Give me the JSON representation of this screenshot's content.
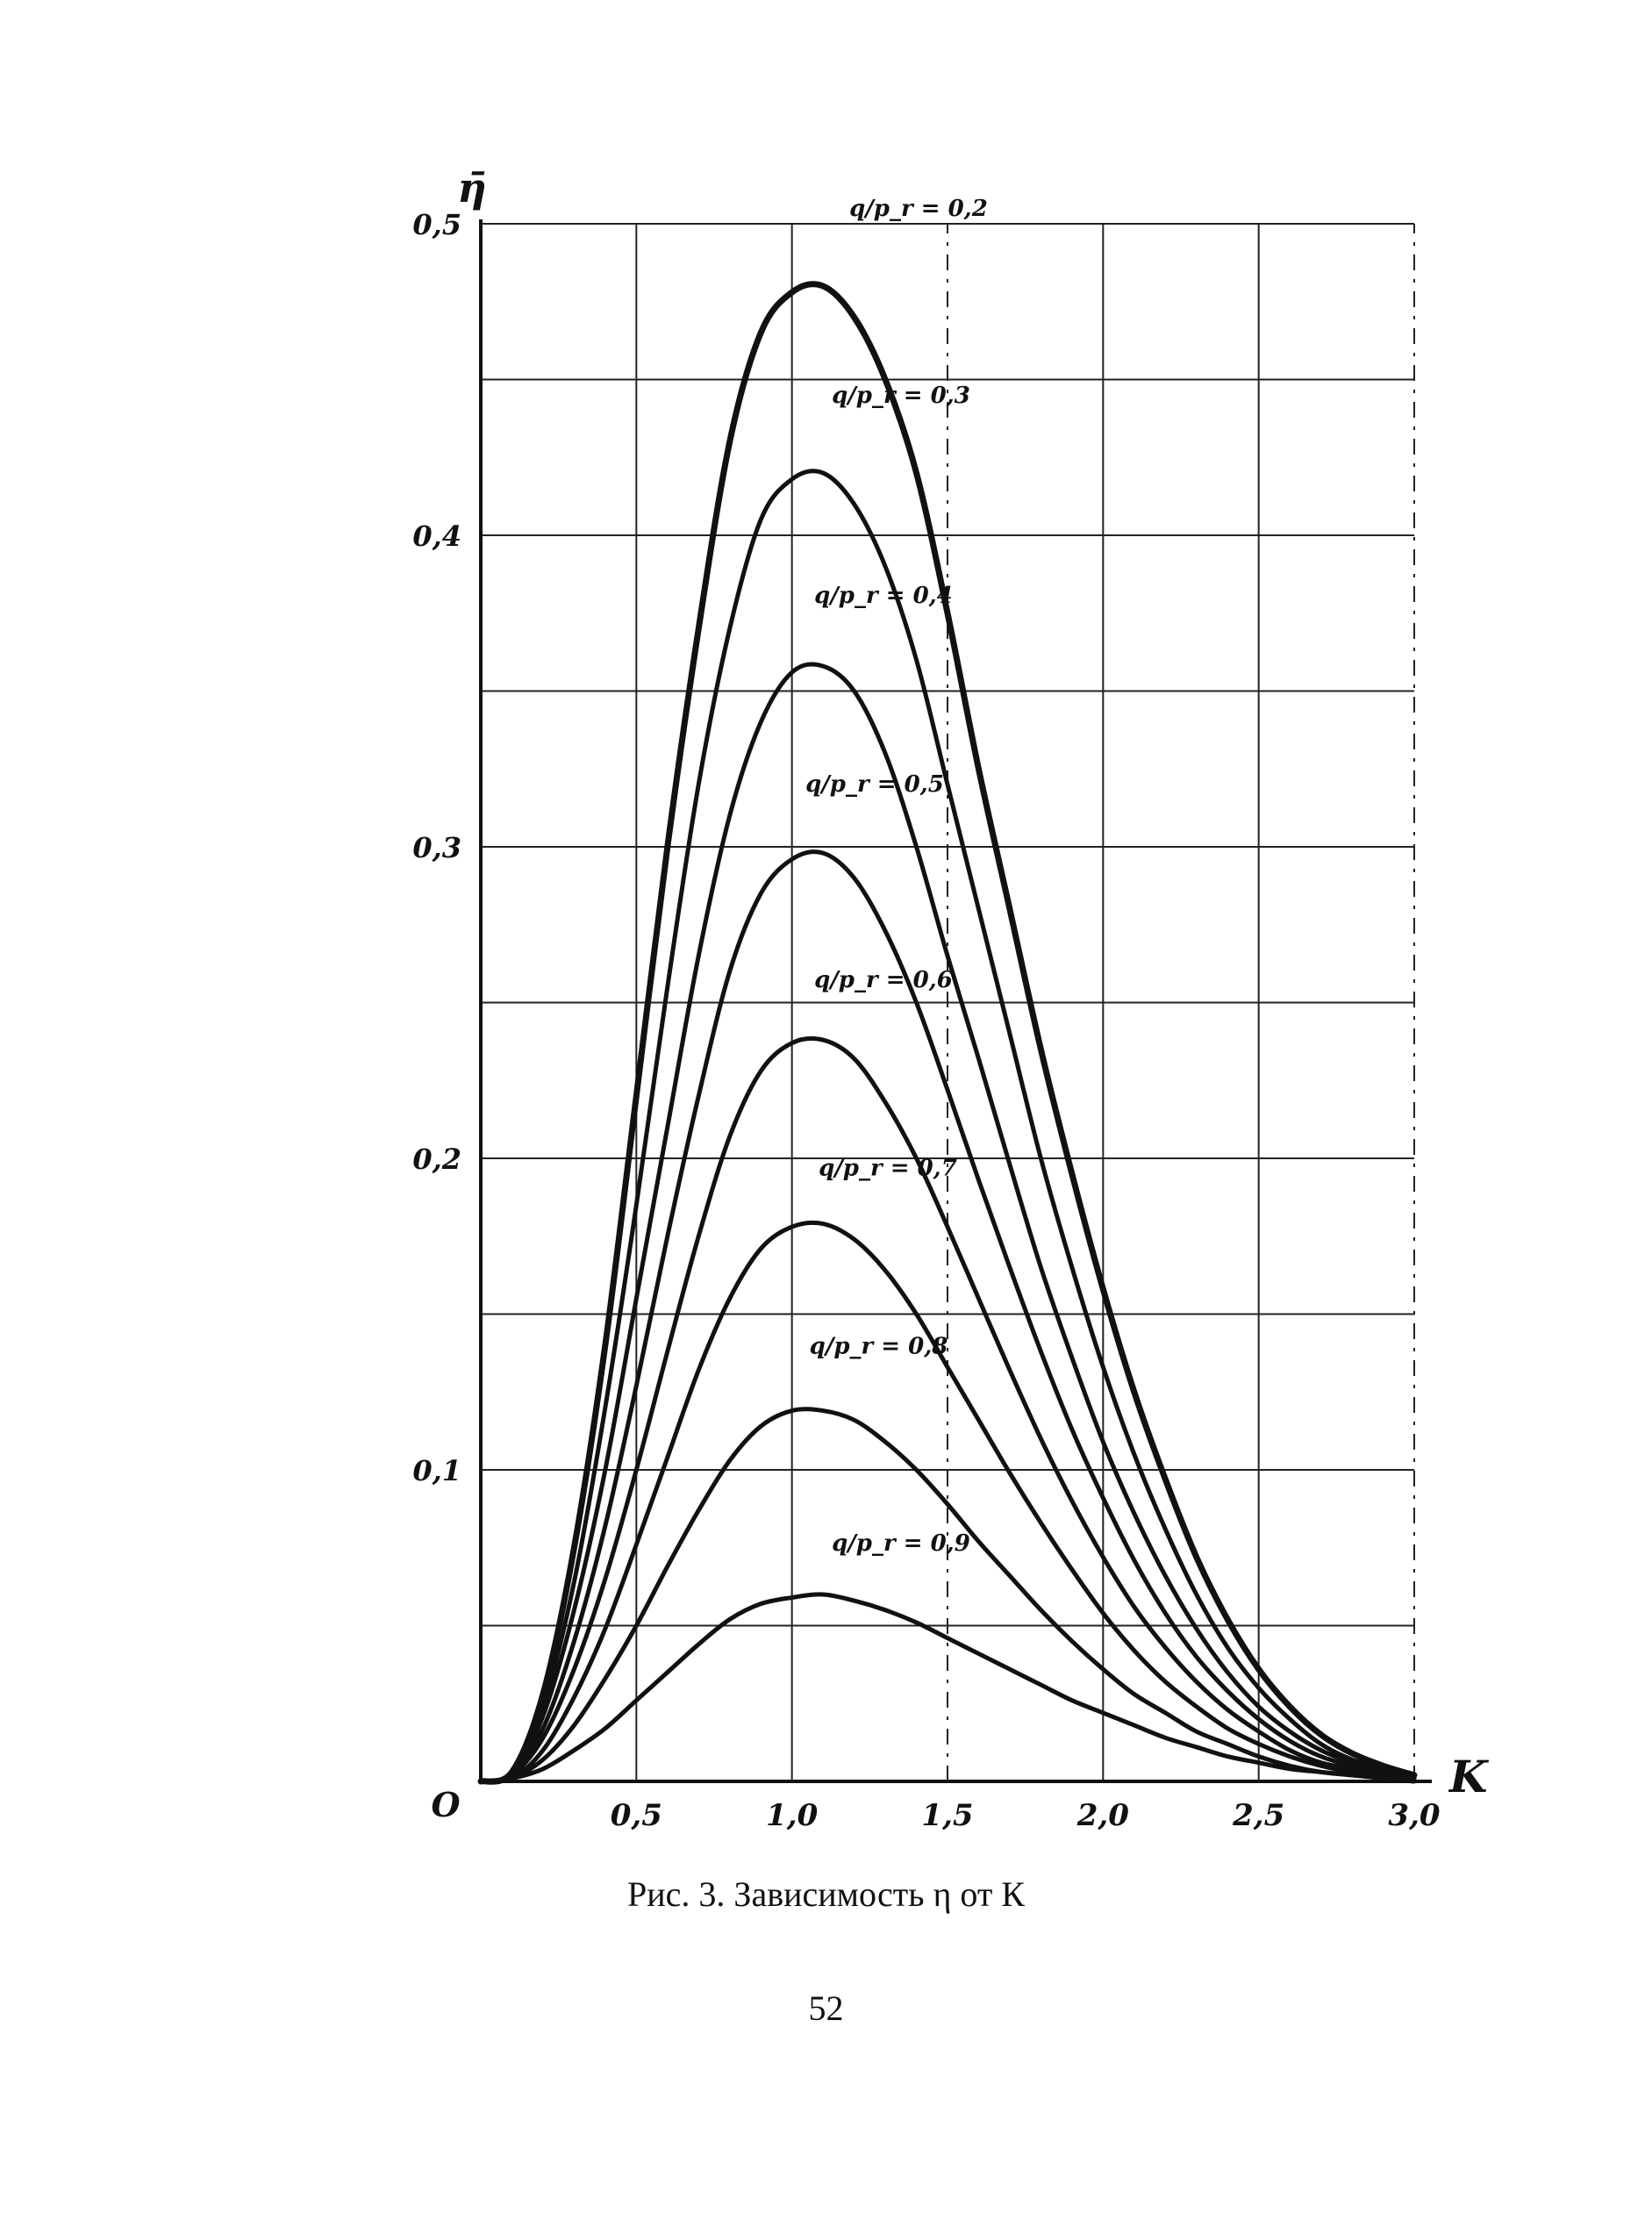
{
  "caption": "Рис. 3. Зависимость η от К",
  "page_number": "52",
  "chart_data": {
    "type": "line",
    "ylabel": "η̄",
    "xlabel": "K",
    "origin_label": "O",
    "xlim": [
      0,
      3.0
    ],
    "ylim": [
      0,
      0.5
    ],
    "x_ticks": [
      0.5,
      1.0,
      1.5,
      2.0,
      2.5,
      3.0
    ],
    "x_tick_labels": [
      "0,5",
      "1,0",
      "1,5",
      "2,0",
      "2,5",
      "3,0"
    ],
    "y_ticks": [
      0.1,
      0.2,
      0.3,
      0.4,
      0.5
    ],
    "y_tick_labels": [
      "0,1",
      "0,2",
      "0,3",
      "0,4",
      "0,5"
    ],
    "grid": true,
    "x": [
      0,
      0.1,
      0.2,
      0.3,
      0.4,
      0.5,
      0.6,
      0.7,
      0.8,
      0.9,
      1.0,
      1.1,
      1.2,
      1.3,
      1.4,
      1.5,
      1.6,
      1.7,
      1.8,
      1.9,
      2.0,
      2.1,
      2.2,
      2.3,
      2.4,
      2.5,
      2.6,
      2.7,
      2.8,
      2.9,
      3.0
    ],
    "series": [
      {
        "label": "q/p_r = 0,2",
        "values": [
          0,
          0.003,
          0.028,
          0.075,
          0.14,
          0.22,
          0.3,
          0.37,
          0.43,
          0.465,
          0.478,
          0.48,
          0.47,
          0.45,
          0.42,
          0.375,
          0.325,
          0.28,
          0.235,
          0.195,
          0.158,
          0.125,
          0.097,
          0.072,
          0.052,
          0.036,
          0.024,
          0.015,
          0.009,
          0.005,
          0.002
        ]
      },
      {
        "label": "q/p_r = 0,3",
        "values": [
          0,
          0.003,
          0.024,
          0.064,
          0.12,
          0.185,
          0.255,
          0.32,
          0.37,
          0.405,
          0.418,
          0.42,
          0.41,
          0.39,
          0.36,
          0.32,
          0.28,
          0.24,
          0.2,
          0.165,
          0.133,
          0.105,
          0.081,
          0.06,
          0.043,
          0.03,
          0.02,
          0.012,
          0.007,
          0.004,
          0.002
        ]
      },
      {
        "label": "q/p_r = 0,4",
        "values": [
          0,
          0.002,
          0.021,
          0.055,
          0.1,
          0.155,
          0.21,
          0.265,
          0.31,
          0.34,
          0.356,
          0.358,
          0.35,
          0.33,
          0.3,
          0.265,
          0.232,
          0.198,
          0.165,
          0.136,
          0.109,
          0.086,
          0.066,
          0.049,
          0.035,
          0.024,
          0.016,
          0.01,
          0.006,
          0.003,
          0.001
        ]
      },
      {
        "label": "q/p_r = 0,5",
        "values": [
          0,
          0.002,
          0.017,
          0.045,
          0.082,
          0.127,
          0.175,
          0.22,
          0.26,
          0.285,
          0.296,
          0.298,
          0.29,
          0.273,
          0.25,
          0.222,
          0.193,
          0.165,
          0.138,
          0.113,
          0.091,
          0.071,
          0.054,
          0.04,
          0.029,
          0.02,
          0.013,
          0.008,
          0.005,
          0.003,
          0.001
        ]
      },
      {
        "label": "q/p_r = 0,6",
        "values": [
          0,
          0.002,
          0.014,
          0.036,
          0.065,
          0.1,
          0.138,
          0.175,
          0.207,
          0.228,
          0.237,
          0.238,
          0.232,
          0.218,
          0.2,
          0.178,
          0.155,
          0.132,
          0.11,
          0.09,
          0.072,
          0.056,
          0.043,
          0.032,
          0.023,
          0.016,
          0.01,
          0.006,
          0.004,
          0.002,
          0.001
        ]
      },
      {
        "label": "q/p_r = 0,7",
        "values": [
          0,
          0.001,
          0.01,
          0.027,
          0.049,
          0.076,
          0.104,
          0.132,
          0.155,
          0.171,
          0.178,
          0.179,
          0.174,
          0.164,
          0.15,
          0.133,
          0.116,
          0.099,
          0.083,
          0.068,
          0.054,
          0.042,
          0.032,
          0.024,
          0.017,
          0.012,
          0.008,
          0.005,
          0.003,
          0.002,
          0.001
        ]
      },
      {
        "label": "q/p_r = 0,8",
        "values": [
          0,
          0.001,
          0.007,
          0.018,
          0.033,
          0.05,
          0.069,
          0.087,
          0.103,
          0.114,
          0.119,
          0.119,
          0.116,
          0.109,
          0.1,
          0.089,
          0.077,
          0.066,
          0.055,
          0.045,
          0.036,
          0.028,
          0.022,
          0.016,
          0.012,
          0.008,
          0.005,
          0.003,
          0.002,
          0.001,
          0.0
        ]
      },
      {
        "label": "q/p_r = 0,9",
        "values": [
          0,
          0.001,
          0.004,
          0.01,
          0.017,
          0.026,
          0.035,
          0.044,
          0.052,
          0.057,
          0.059,
          0.06,
          0.058,
          0.055,
          0.051,
          0.046,
          0.041,
          0.036,
          0.031,
          0.026,
          0.022,
          0.018,
          0.014,
          0.011,
          0.008,
          0.006,
          0.004,
          0.003,
          0.002,
          0.001,
          0.0
        ]
      }
    ]
  }
}
